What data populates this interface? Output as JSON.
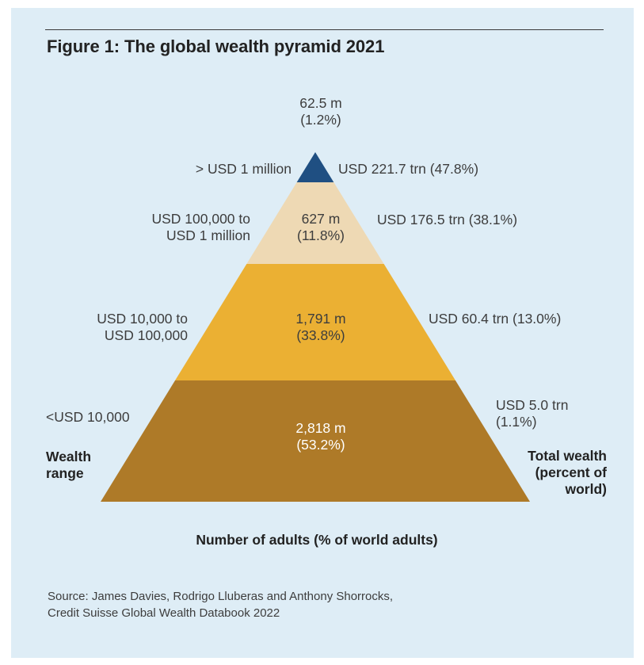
{
  "title": "Figure 1: The global wealth pyramid 2021",
  "colors": {
    "panel_bg": "#deedf6",
    "tier_top": "#1f4f82",
    "tier_2": "#eed9b4",
    "tier_3": "#ebb033",
    "tier_4": "#ae7a28"
  },
  "chart_data": {
    "type": "pyramid",
    "title": "Figure 1: The global wealth pyramid 2021",
    "left_axis_title": "Wealth range",
    "right_axis_title": "Total wealth (percent of world)",
    "bottom_title": "Number of adults (% of world adults)",
    "tiers": [
      {
        "range_lines": [
          "> USD 1 million"
        ],
        "adults_lines": [
          "62.5 m",
          "(1.2%)"
        ],
        "wealth_lines": [
          "USD 221.7 trn (47.8%)"
        ],
        "adults_millions": 62.5,
        "adults_pct": 1.2,
        "wealth_trn": 221.7,
        "wealth_pct": 47.8
      },
      {
        "range_lines": [
          "USD 100,000 to",
          "USD 1 million"
        ],
        "adults_lines": [
          "627 m",
          "(11.8%)"
        ],
        "wealth_lines": [
          "USD 176.5 trn (38.1%)"
        ],
        "adults_millions": 627,
        "adults_pct": 11.8,
        "wealth_trn": 176.5,
        "wealth_pct": 38.1
      },
      {
        "range_lines": [
          "USD 10,000 to",
          "USD 100,000"
        ],
        "adults_lines": [
          "1,791 m",
          "(33.8%)"
        ],
        "wealth_lines": [
          "USD 60.4 trn (13.0%)"
        ],
        "adults_millions": 1791,
        "adults_pct": 33.8,
        "wealth_trn": 60.4,
        "wealth_pct": 13.0
      },
      {
        "range_lines": [
          "<USD 10,000"
        ],
        "adults_lines": [
          "2,818 m",
          "(53.2%)"
        ],
        "wealth_lines": [
          "USD 5.0 trn",
          "(1.1%)"
        ],
        "adults_millions": 2818,
        "adults_pct": 53.2,
        "wealth_trn": 5.0,
        "wealth_pct": 1.1
      }
    ],
    "left_title_lines": [
      "Wealth",
      "range"
    ],
    "right_title_lines": [
      "Total wealth",
      "(percent of",
      "world)"
    ]
  },
  "source_lines": [
    "Source: James Davies, Rodrigo Lluberas and Anthony Shorrocks,",
    "Credit Suisse Global Wealth Databook 2022"
  ]
}
